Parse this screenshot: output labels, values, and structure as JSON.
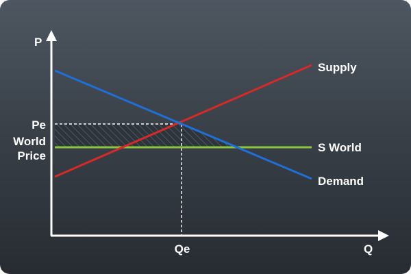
{
  "diagram": {
    "axis_y_label": "P",
    "axis_x_label": "Q",
    "price_equilibrium_label": "Pe",
    "world_price_label_line1": "World",
    "world_price_label_line2": "Price",
    "quantity_equilibrium_label": "Qe",
    "supply_label": "Supply",
    "demand_label": "Demand",
    "world_supply_label": "S World"
  },
  "colors": {
    "supply": "#d42a2a",
    "demand": "#1f6fd6",
    "world_supply": "#8cc63f",
    "axis": "#ffffff",
    "guide": "#ffffff"
  }
}
